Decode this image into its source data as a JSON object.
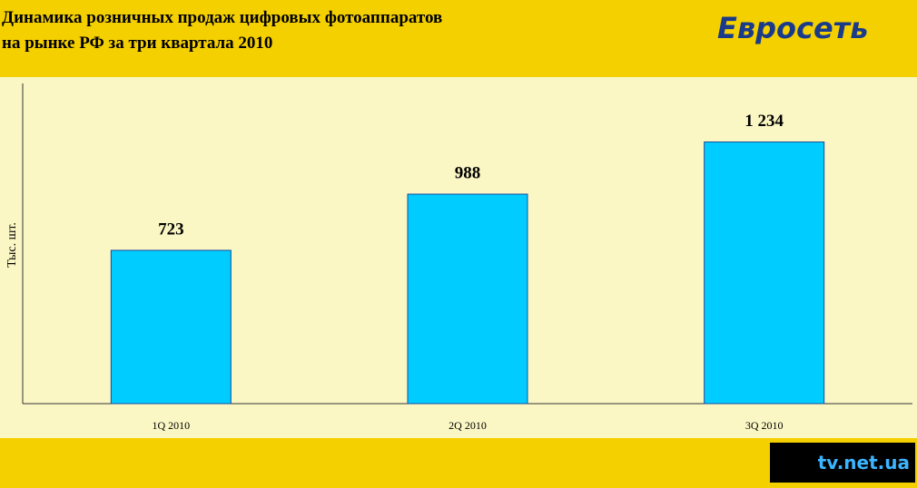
{
  "chart_data": {
    "type": "bar",
    "title": "Динамика розничных продаж цифровых фотоаппаратов\nна рынке РФ за три квартала 2010",
    "y_label": "Тыс. шт.",
    "categories": [
      "1Q 2010",
      "2Q 2010",
      "3Q 2010"
    ],
    "values": [
      723,
      988,
      1234
    ],
    "value_labels": [
      "723",
      "988",
      "1 234"
    ],
    "color": "#00ccff",
    "ylim": [
      0,
      1510
    ],
    "logo": "Евросеть",
    "watermark": "tv.net.ua"
  }
}
